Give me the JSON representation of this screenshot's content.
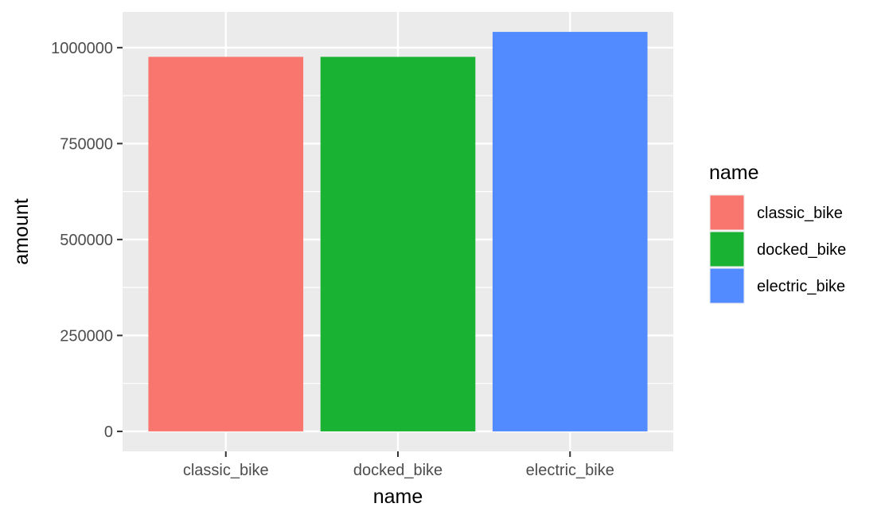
{
  "chart_data": {
    "type": "bar",
    "categories": [
      "classic_bike",
      "docked_bike",
      "electric_bike"
    ],
    "values": [
      976000,
      976000,
      1041000
    ],
    "colors": [
      "#F8766D",
      "#1AB232",
      "#528BFF"
    ],
    "xlabel": "name",
    "ylabel": "amount",
    "ylim": [
      -52000,
      1093000
    ],
    "yticks": [
      0,
      250000,
      500000,
      750000,
      1000000
    ],
    "ytick_labels": [
      "0",
      "250000",
      "500000",
      "750000",
      "1000000"
    ],
    "grid": true,
    "panel_background": "#EBEBEB",
    "legend": {
      "title": "name",
      "position": "right",
      "entries": [
        "classic_bike",
        "docked_bike",
        "electric_bike"
      ]
    }
  }
}
